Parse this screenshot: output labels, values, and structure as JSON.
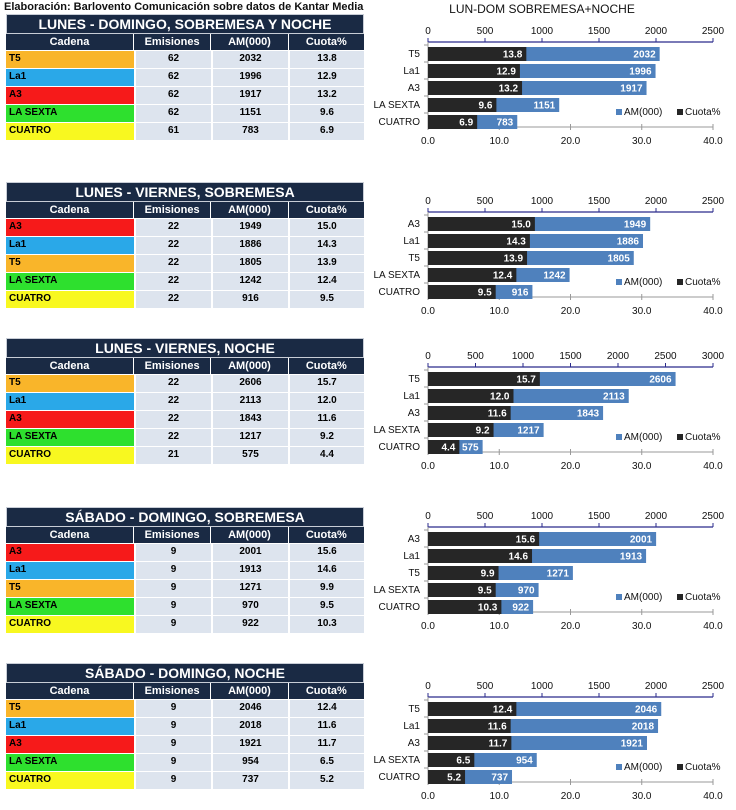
{
  "credit": "Elaboración: Barlovento Comunicación sobre datos de Kantar Media",
  "table_headers": [
    "Cadena",
    "Emisiones",
    "AM(000)",
    "Cuota%"
  ],
  "channel_colors": {
    "T5": "#f9b52a",
    "La1": "#2aa8e8",
    "A3": "#f61a1a",
    "LA SEXTA": "#2ee02e",
    "CUATRO": "#f8f820"
  },
  "colors": {
    "header_bg": "#1a2a44",
    "cell_bg": "#dde4ee",
    "am_bar": "#4f81bd",
    "cuota_bar": "#262626",
    "top_axis": "#2b2b8c"
  },
  "legend": {
    "am": "AM(000)",
    "cuota": "Cuota%"
  },
  "tables": [
    {
      "title": "LUNES - DOMINGO, SOBREMESA Y NOCHE",
      "rows": [
        {
          "cadena": "T5",
          "emisiones": "62",
          "am": "2032",
          "cuota": "13.8"
        },
        {
          "cadena": "La1",
          "emisiones": "62",
          "am": "1996",
          "cuota": "12.9"
        },
        {
          "cadena": "A3",
          "emisiones": "62",
          "am": "1917",
          "cuota": "13.2"
        },
        {
          "cadena": "LA SEXTA",
          "emisiones": "62",
          "am": "1151",
          "cuota": "9.6"
        },
        {
          "cadena": "CUATRO",
          "emisiones": "61",
          "am": "783",
          "cuota": "6.9"
        }
      ]
    },
    {
      "title": "LUNES - VIERNES, SOBREMESA",
      "rows": [
        {
          "cadena": "A3",
          "emisiones": "22",
          "am": "1949",
          "cuota": "15.0"
        },
        {
          "cadena": "La1",
          "emisiones": "22",
          "am": "1886",
          "cuota": "14.3"
        },
        {
          "cadena": "T5",
          "emisiones": "22",
          "am": "1805",
          "cuota": "13.9"
        },
        {
          "cadena": "LA SEXTA",
          "emisiones": "22",
          "am": "1242",
          "cuota": "12.4"
        },
        {
          "cadena": "CUATRO",
          "emisiones": "22",
          "am": "916",
          "cuota": "9.5"
        }
      ]
    },
    {
      "title": "LUNES - VIERNES, NOCHE",
      "rows": [
        {
          "cadena": "T5",
          "emisiones": "22",
          "am": "2606",
          "cuota": "15.7"
        },
        {
          "cadena": "La1",
          "emisiones": "22",
          "am": "2113",
          "cuota": "12.0"
        },
        {
          "cadena": "A3",
          "emisiones": "22",
          "am": "1843",
          "cuota": "11.6"
        },
        {
          "cadena": "LA SEXTA",
          "emisiones": "22",
          "am": "1217",
          "cuota": "9.2"
        },
        {
          "cadena": "CUATRO",
          "emisiones": "21",
          "am": "575",
          "cuota": "4.4"
        }
      ]
    },
    {
      "title": "SÁBADO - DOMINGO, SOBREMESA",
      "rows": [
        {
          "cadena": "A3",
          "emisiones": "9",
          "am": "2001",
          "cuota": "15.6"
        },
        {
          "cadena": "La1",
          "emisiones": "9",
          "am": "1913",
          "cuota": "14.6"
        },
        {
          "cadena": "T5",
          "emisiones": "9",
          "am": "1271",
          "cuota": "9.9"
        },
        {
          "cadena": "LA SEXTA",
          "emisiones": "9",
          "am": "970",
          "cuota": "9.5"
        },
        {
          "cadena": "CUATRO",
          "emisiones": "9",
          "am": "922",
          "cuota": "10.3"
        }
      ]
    },
    {
      "title": "SÁBADO - DOMINGO, NOCHE",
      "rows": [
        {
          "cadena": "T5",
          "emisiones": "9",
          "am": "2046",
          "cuota": "12.4"
        },
        {
          "cadena": "La1",
          "emisiones": "9",
          "am": "2018",
          "cuota": "11.6"
        },
        {
          "cadena": "A3",
          "emisiones": "9",
          "am": "1921",
          "cuota": "11.7"
        },
        {
          "cadena": "LA SEXTA",
          "emisiones": "9",
          "am": "954",
          "cuota": "6.5"
        },
        {
          "cadena": "CUATRO",
          "emisiones": "9",
          "am": "737",
          "cuota": "5.2"
        }
      ]
    }
  ],
  "chart_data": [
    {
      "type": "bar",
      "orientation": "horizontal",
      "title": "LUN-DOM SOBREMESA+NOCHE",
      "categories": [
        "T5",
        "La1",
        "A3",
        "LA SEXTA",
        "CUATRO"
      ],
      "series": [
        {
          "name": "AM(000)",
          "axis": "top",
          "values": [
            2032,
            1996,
            1917,
            1151,
            783
          ]
        },
        {
          "name": "Cuota%",
          "axis": "bottom",
          "values": [
            13.8,
            12.9,
            13.2,
            9.6,
            6.9
          ]
        }
      ],
      "top_axis": {
        "range": [
          0,
          2500
        ],
        "ticks": [
          "0",
          "500",
          "1000",
          "1500",
          "2000",
          "2500"
        ]
      },
      "bottom_axis": {
        "range": [
          0,
          40
        ],
        "ticks": [
          "0.0",
          "10.0",
          "20.0",
          "30.0",
          "40.0"
        ]
      },
      "legend": "bottom-right",
      "grid": false
    },
    {
      "type": "bar",
      "orientation": "horizontal",
      "title": "",
      "categories": [
        "A3",
        "La1",
        "T5",
        "LA SEXTA",
        "CUATRO"
      ],
      "series": [
        {
          "name": "AM(000)",
          "axis": "top",
          "values": [
            1949,
            1886,
            1805,
            1242,
            916
          ]
        },
        {
          "name": "Cuota%",
          "axis": "bottom",
          "values": [
            15.0,
            14.3,
            13.9,
            12.4,
            9.5
          ]
        }
      ],
      "top_axis": {
        "range": [
          0,
          2500
        ],
        "ticks": [
          "0",
          "500",
          "1000",
          "1500",
          "2000",
          "2500"
        ]
      },
      "bottom_axis": {
        "range": [
          0,
          40
        ],
        "ticks": [
          "0.0",
          "10.0",
          "20.0",
          "30.0",
          "40.0"
        ]
      },
      "legend": "bottom-right",
      "grid": false
    },
    {
      "type": "bar",
      "orientation": "horizontal",
      "title": "",
      "categories": [
        "T5",
        "La1",
        "A3",
        "LA SEXTA",
        "CUATRO"
      ],
      "series": [
        {
          "name": "AM(000)",
          "axis": "top",
          "values": [
            2606,
            2113,
            1843,
            1217,
            575
          ]
        },
        {
          "name": "Cuota%",
          "axis": "bottom",
          "values": [
            15.7,
            12.0,
            11.6,
            9.2,
            4.4
          ]
        }
      ],
      "top_axis": {
        "range": [
          0,
          3000
        ],
        "ticks": [
          "0",
          "500",
          "1000",
          "1500",
          "2000",
          "2500",
          "3000"
        ]
      },
      "bottom_axis": {
        "range": [
          0,
          40
        ],
        "ticks": [
          "0.0",
          "10.0",
          "20.0",
          "30.0",
          "40.0"
        ]
      },
      "legend": "bottom-right",
      "grid": false
    },
    {
      "type": "bar",
      "orientation": "horizontal",
      "title": "",
      "categories": [
        "A3",
        "La1",
        "T5",
        "LA SEXTA",
        "CUATRO"
      ],
      "series": [
        {
          "name": "AM(000)",
          "axis": "top",
          "values": [
            2001,
            1913,
            1271,
            970,
            922
          ]
        },
        {
          "name": "Cuota%",
          "axis": "bottom",
          "values": [
            15.6,
            14.6,
            9.9,
            9.5,
            10.3
          ]
        }
      ],
      "top_axis": {
        "range": [
          0,
          2500
        ],
        "ticks": [
          "0",
          "500",
          "1000",
          "1500",
          "2000",
          "2500"
        ]
      },
      "bottom_axis": {
        "range": [
          0,
          40
        ],
        "ticks": [
          "0.0",
          "10.0",
          "20.0",
          "30.0",
          "40.0"
        ]
      },
      "legend": "bottom-right",
      "grid": false
    },
    {
      "type": "bar",
      "orientation": "horizontal",
      "title": "",
      "categories": [
        "T5",
        "La1",
        "A3",
        "LA SEXTA",
        "CUATRO"
      ],
      "series": [
        {
          "name": "AM(000)",
          "axis": "top",
          "values": [
            2046,
            2018,
            1921,
            954,
            737
          ]
        },
        {
          "name": "Cuota%",
          "axis": "bottom",
          "values": [
            12.4,
            11.6,
            11.7,
            6.5,
            5.2
          ]
        }
      ],
      "top_axis": {
        "range": [
          0,
          2500
        ],
        "ticks": [
          "0",
          "500",
          "1000",
          "1500",
          "2000",
          "2500"
        ]
      },
      "bottom_axis": {
        "range": [
          0,
          40
        ],
        "ticks": [
          "0.0",
          "10.0",
          "20.0",
          "30.0",
          "40.0"
        ]
      },
      "legend": "bottom-right",
      "grid": false
    }
  ]
}
